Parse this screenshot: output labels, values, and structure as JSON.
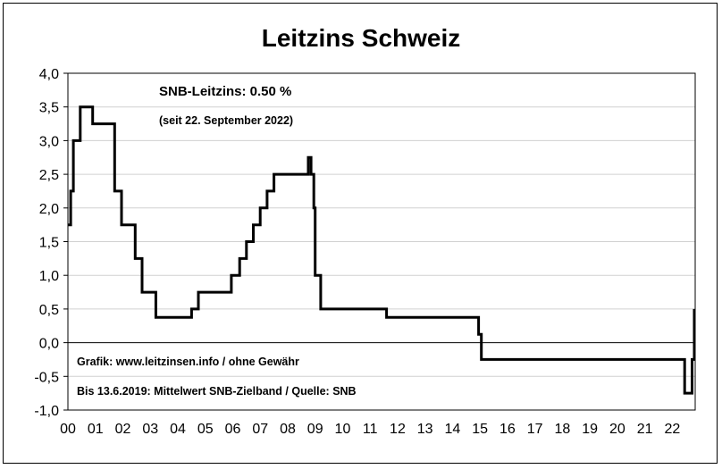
{
  "chart_data": {
    "type": "line",
    "title": "Leitzins Schweiz",
    "xlabel": "",
    "ylabel": "",
    "ylim": [
      -1.0,
      4.0
    ],
    "xlim": [
      2000,
      2022.8
    ],
    "grid": true,
    "y_ticks": [
      "4,0",
      "3,5",
      "3,0",
      "2,5",
      "2,0",
      "1,5",
      "1,0",
      "0,5",
      "0,0",
      "-0,5",
      "-1,0"
    ],
    "x_ticks": [
      "00",
      "01",
      "02",
      "03",
      "04",
      "05",
      "06",
      "07",
      "08",
      "09",
      "10",
      "11",
      "12",
      "13",
      "14",
      "15",
      "16",
      "17",
      "18",
      "19",
      "20",
      "21",
      "22"
    ],
    "annotations": {
      "rate": "SNB-Leitzins: 0.50 %",
      "since": "(seit 22. September 2022)",
      "credit": "Grafik: www.leitzinsen.info / ohne Gewähr",
      "source": "Bis 13.6.2019: Mittelwert SNB-Zielband / Quelle: SNB"
    },
    "series": [
      {
        "x": [
          2000.0,
          2000.1,
          2000.2,
          2000.45,
          2000.9,
          2001.7,
          2001.95,
          2002.45,
          2002.7,
          2003.2,
          2004.5,
          2004.75,
          2005.95,
          2006.25,
          2006.5,
          2006.75,
          2007.0,
          2007.25,
          2007.5,
          2008.75,
          2008.85,
          2008.95,
          2009.0,
          2009.2,
          2011.6,
          2014.95,
          2015.05,
          2022.45,
          2022.72
        ],
        "y": [
          1.75,
          2.25,
          3.0,
          3.5,
          3.25,
          2.25,
          1.75,
          1.25,
          0.75,
          0.375,
          0.5,
          0.75,
          1.0,
          1.25,
          1.5,
          1.75,
          2.0,
          2.25,
          2.5,
          2.75,
          2.5,
          2.0,
          1.0,
          0.5,
          0.375,
          0.125,
          -0.25,
          -0.75,
          -0.25
        ]
      }
    ],
    "end_value": 0.5,
    "colors": {
      "line": "#000000",
      "grid": "#d0d0d0"
    }
  }
}
